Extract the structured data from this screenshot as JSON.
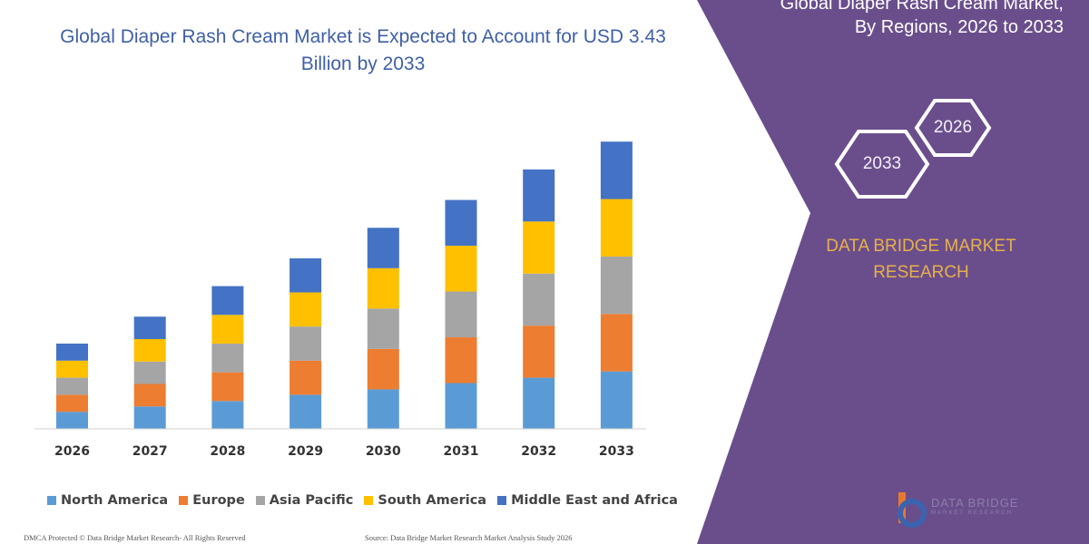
{
  "chart_data": {
    "type": "bar",
    "stacked": true,
    "title": "Global Diaper Rash Cream Market is Expected to Account for USD 3.43 Billion by 2033",
    "categories": [
      "2026",
      "2027",
      "2028",
      "2029",
      "2030",
      "2031",
      "2032",
      "2033"
    ],
    "series": [
      {
        "name": "North America",
        "color": "#5b9bd5",
        "values": [
          19,
          25,
          31,
          38,
          44,
          51,
          57,
          64
        ]
      },
      {
        "name": "Europe",
        "color": "#ed7d31",
        "values": [
          19,
          25,
          32,
          38,
          45,
          51,
          58,
          64
        ]
      },
      {
        "name": "Asia Pacific",
        "color": "#a5a5a5",
        "values": [
          19,
          25,
          32,
          38,
          45,
          51,
          58,
          64
        ]
      },
      {
        "name": "South America",
        "color": "#ffc000",
        "values": [
          19,
          25,
          32,
          38,
          45,
          51,
          58,
          64
        ]
      },
      {
        "name": "Middle East and Africa",
        "color": "#4472c4",
        "values": [
          19,
          25,
          32,
          38,
          45,
          51,
          58,
          64
        ]
      }
    ],
    "grid": false,
    "legend_position": "bottom"
  },
  "side_panel": {
    "title_line1": "Global Diaper Rash Cream Market,",
    "title_line2": "By Regions, 2026 to 2033",
    "hex_front": "2033",
    "hex_back": "2026",
    "brand_line1": "DATA BRIDGE MARKET",
    "brand_line2": "RESEARCH",
    "logo_text": "DATA BRIDGE",
    "logo_sub": "MARKET RESEARCH",
    "panel_color": "#6a4e8c",
    "hex_stroke": "#ffffff",
    "brand_color": "#e8b04a"
  },
  "footer": {
    "left": "DMCA Protected © Data Bridge Market Research- All Rights Reserved",
    "right": "Source: Data Bridge Market Research Market Analysis Study 2026"
  }
}
